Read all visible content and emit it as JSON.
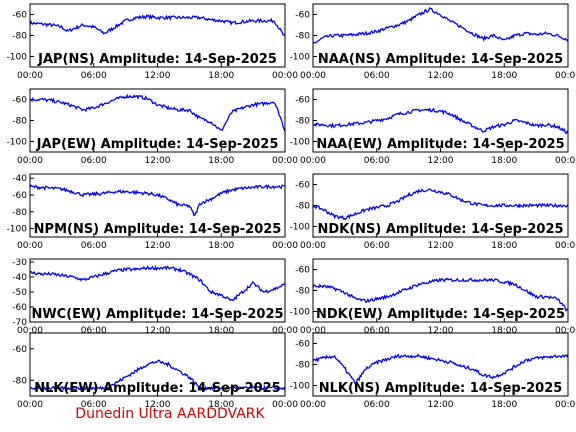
{
  "footer": "Dunedin Ultra AARDDVARK",
  "x_tick_labels": [
    "00:00",
    "06:00",
    "12:00",
    "18:00",
    "00:00"
  ],
  "line_color": "#0000ff",
  "footer_color": "#d40000",
  "chart_data": [
    {
      "type": "line",
      "title": "JAP(NS) Amplitude: 14-Sep-2025",
      "ylim": [
        -110,
        -50
      ],
      "yticks": [
        -60,
        -80,
        -100
      ],
      "xlim": [
        0,
        24
      ],
      "x": [
        0,
        1,
        2,
        3,
        3.5,
        4,
        5,
        6,
        7,
        8,
        9,
        10,
        11,
        12,
        13,
        14,
        15,
        16,
        17,
        18,
        19,
        20,
        21,
        22,
        23,
        23.5,
        24
      ],
      "y": [
        -68,
        -69,
        -70,
        -72,
        -76,
        -74,
        -70,
        -72,
        -78,
        -72,
        -66,
        -63,
        -62,
        -63,
        -63,
        -63,
        -63,
        -63,
        -65,
        -66,
        -68,
        -67,
        -66,
        -66,
        -66,
        -74,
        -82
      ]
    },
    {
      "type": "line",
      "title": "NAA(NS) Amplitude: 14-Sep-2025",
      "ylim": [
        -110,
        -50
      ],
      "yticks": [
        -60,
        -80,
        -100
      ],
      "xlim": [
        0,
        24
      ],
      "x": [
        0,
        1,
        2,
        3,
        4,
        5,
        6,
        7,
        8,
        9,
        10,
        11,
        12,
        13,
        14,
        15,
        16,
        17,
        18,
        19,
        20,
        21,
        22,
        23,
        24
      ],
      "y": [
        -88,
        -82,
        -80,
        -80,
        -79,
        -78,
        -76,
        -73,
        -70,
        -66,
        -60,
        -55,
        -60,
        -67,
        -72,
        -78,
        -83,
        -80,
        -85,
        -80,
        -78,
        -79,
        -78,
        -80,
        -84
      ]
    },
    {
      "type": "line",
      "title": "JAP(EW) Amplitude: 14-Sep-2025",
      "ylim": [
        -110,
        -50
      ],
      "yticks": [
        -60,
        -80,
        -100
      ],
      "xlim": [
        0,
        24
      ],
      "x": [
        0,
        1,
        2,
        3,
        4,
        5,
        6,
        7,
        8,
        9,
        10,
        11,
        12,
        13,
        14,
        15,
        16,
        17,
        18,
        19,
        20,
        21,
        22,
        23,
        23.5,
        24
      ],
      "y": [
        -60,
        -60,
        -61,
        -63,
        -66,
        -70,
        -68,
        -64,
        -60,
        -57,
        -57,
        -59,
        -65,
        -68,
        -70,
        -70,
        -78,
        -81,
        -90,
        -72,
        -68,
        -65,
        -64,
        -62,
        -75,
        -90
      ]
    },
    {
      "type": "line",
      "title": "NAA(EW) Amplitude: 14-Sep-2025",
      "ylim": [
        -110,
        -50
      ],
      "yticks": [
        -60,
        -80,
        -100
      ],
      "xlim": [
        0,
        24
      ],
      "x": [
        0,
        1,
        2,
        3,
        4,
        5,
        6,
        7,
        8,
        9,
        10,
        11,
        12,
        13,
        14,
        15,
        16,
        17,
        18,
        19,
        20,
        21,
        22,
        23,
        24
      ],
      "y": [
        -84,
        -84,
        -85,
        -84,
        -83,
        -82,
        -80,
        -78,
        -74,
        -72,
        -70,
        -70,
        -71,
        -74,
        -80,
        -85,
        -90,
        -86,
        -84,
        -80,
        -82,
        -85,
        -84,
        -86,
        -92
      ]
    },
    {
      "type": "line",
      "title": "NPM(NS) Amplitude: 14-Sep-2025",
      "ylim": [
        -110,
        -35
      ],
      "yticks": [
        -40,
        -60,
        -80,
        -100
      ],
      "xlim": [
        0,
        24
      ],
      "x": [
        0,
        1,
        2,
        3,
        4,
        5,
        6,
        7,
        8,
        9,
        10,
        11,
        12,
        13,
        14,
        15,
        15.5,
        16,
        17,
        18,
        19,
        20,
        21,
        22,
        23,
        24
      ],
      "y": [
        -50,
        -51,
        -52,
        -53,
        -56,
        -60,
        -59,
        -58,
        -56,
        -56,
        -57,
        -58,
        -60,
        -65,
        -72,
        -73,
        -85,
        -70,
        -65,
        -58,
        -54,
        -52,
        -51,
        -50,
        -50,
        -50
      ]
    },
    {
      "type": "line",
      "title": "NDK(NS) Amplitude: 14-Sep-2025",
      "ylim": [
        -110,
        -50
      ],
      "yticks": [
        -60,
        -80,
        -100
      ],
      "xlim": [
        0,
        24
      ],
      "x": [
        0,
        1,
        2,
        3,
        4,
        5,
        6,
        7,
        8,
        9,
        10,
        11,
        12,
        13,
        14,
        15,
        16,
        17,
        18,
        19,
        20,
        21,
        22,
        23,
        24
      ],
      "y": [
        -80,
        -84,
        -90,
        -92,
        -88,
        -84,
        -82,
        -80,
        -76,
        -70,
        -66,
        -65,
        -67,
        -70,
        -75,
        -78,
        -80,
        -80,
        -80,
        -80,
        -80,
        -80,
        -80,
        -80,
        -80
      ]
    },
    {
      "type": "line",
      "title": "NWC(EW) Amplitude: 14-Sep-2025",
      "ylim": [
        -70,
        -28
      ],
      "yticks": [
        -30,
        -40,
        -50,
        -60,
        -70
      ],
      "xlim": [
        0,
        24
      ],
      "x": [
        0,
        1,
        2,
        3,
        4,
        5,
        6,
        7,
        8,
        9,
        10,
        11,
        12,
        13,
        14,
        15,
        16,
        17,
        18,
        19,
        20,
        21,
        22,
        23,
        24
      ],
      "y": [
        -37,
        -38,
        -38,
        -39,
        -40,
        -42,
        -40,
        -38,
        -36,
        -35,
        -35,
        -34,
        -34,
        -34,
        -35,
        -38,
        -42,
        -50,
        -52,
        -56,
        -50,
        -44,
        -50,
        -48,
        -45
      ]
    },
    {
      "type": "line",
      "title": "NDK(EW) Amplitude: 14-Sep-2025",
      "ylim": [
        -110,
        -50
      ],
      "yticks": [
        -60,
        -80,
        -100
      ],
      "xlim": [
        0,
        24
      ],
      "x": [
        0,
        1,
        2,
        3,
        4,
        5,
        6,
        7,
        8,
        9,
        10,
        11,
        12,
        13,
        14,
        15,
        16,
        17,
        18,
        19,
        20,
        21,
        22,
        23,
        24
      ],
      "y": [
        -76,
        -76,
        -78,
        -82,
        -88,
        -90,
        -88,
        -86,
        -82,
        -78,
        -74,
        -72,
        -70,
        -70,
        -70,
        -70,
        -70,
        -70,
        -72,
        -74,
        -80,
        -86,
        -86,
        -88,
        -100
      ]
    },
    {
      "type": "line",
      "title": "NLK(EW) Amplitude: 14-Sep-2025",
      "ylim": [
        -90,
        -50
      ],
      "yticks": [
        -60,
        -80
      ],
      "xlim": [
        0,
        24
      ],
      "x": [
        0,
        1,
        2,
        3,
        4,
        5,
        6,
        7,
        8,
        9,
        10,
        11,
        12,
        13,
        14,
        15,
        16,
        17,
        18,
        19,
        20,
        21,
        22,
        23,
        24
      ],
      "y": [
        -85,
        -85,
        -85,
        -85,
        -85,
        -85,
        -85,
        -85,
        -82,
        -78,
        -74,
        -70,
        -68,
        -70,
        -74,
        -78,
        -85,
        -85,
        -85,
        -85,
        -85,
        -85,
        -85,
        -85,
        -85
      ]
    },
    {
      "type": "line",
      "title": "NLK(NS) Amplitude: 14-Sep-2025",
      "ylim": [
        -110,
        -50
      ],
      "yticks": [
        -60,
        -80,
        -100
      ],
      "xlim": [
        0,
        24
      ],
      "x": [
        0,
        1,
        2,
        3,
        4,
        5,
        6,
        7,
        8,
        9,
        10,
        11,
        12,
        13,
        14,
        15,
        16,
        17,
        18,
        19,
        20,
        21,
        22,
        23,
        24
      ],
      "y": [
        -76,
        -74,
        -72,
        -84,
        -98,
        -84,
        -78,
        -75,
        -72,
        -72,
        -72,
        -74,
        -76,
        -78,
        -82,
        -84,
        -90,
        -92,
        -88,
        -82,
        -76,
        -74,
        -73,
        -72,
        -72
      ]
    }
  ]
}
